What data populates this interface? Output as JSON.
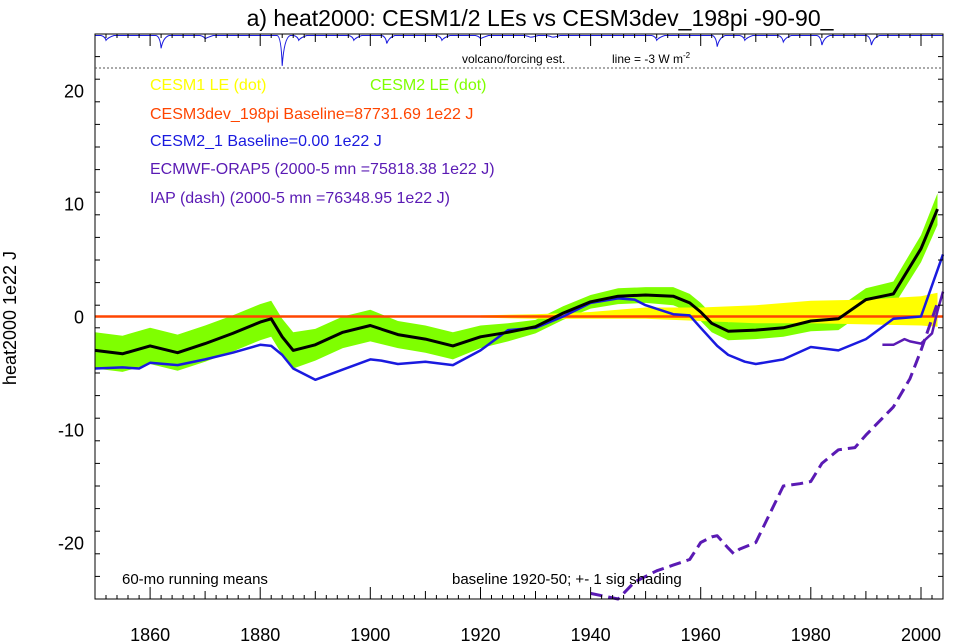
{
  "chart_data": {
    "type": "line",
    "title": "a) heat2000: CESM1/2 LEs vs CESM3dev_198pi -90-90_",
    "ylabel": "heat2000 1e22 J",
    "xlabel": "",
    "xlim": [
      1850,
      2004
    ],
    "ylim": [
      -25,
      25
    ],
    "x_ticks": [
      1860,
      1880,
      1900,
      1920,
      1940,
      1960,
      1980,
      2000
    ],
    "y_ticks": [
      -20,
      -10,
      0,
      10,
      20
    ],
    "grid": false,
    "legend": {
      "cesm1": "CESM1 LE (dot)",
      "cesm2": "CESM2 LE (dot)",
      "cesm3": "CESM3dev_198pi Baseline=87731.69 1e22 J",
      "cesm2_1": "CESM2_1 Baseline=0.00 1e22 J",
      "orap5": "ECMWF-ORAP5 (2000-5 mn =75818.38 1e22 J)",
      "iap": "IAP (dash) (2000-5 mn =76348.95 1e22 J)"
    },
    "annotations": {
      "volcano": "volcano/forcing est.",
      "line_prefix": "line = -3 W m",
      "line_sup": "-2",
      "running": "60-mo running means",
      "baseline": "baseline 1920-50; +- 1 sig shading"
    },
    "colors": {
      "cesm1": "#ffff00",
      "cesm2": "#7fff00",
      "cesm3": "#ff4500",
      "cesm2_1": "#1a1adf",
      "orap5": "#5a1ab4",
      "iap": "#5a1ab4",
      "ensemble_mean": "#000000",
      "volcano": "#1a1adf"
    },
    "series": [
      {
        "name": "CESM2 LE (dot)",
        "x": [
          1850,
          1855,
          1860,
          1865,
          1870,
          1875,
          1880,
          1882,
          1884,
          1886,
          1890,
          1895,
          1900,
          1905,
          1910,
          1915,
          1920,
          1925,
          1930,
          1935,
          1940,
          1945,
          1950,
          1955,
          1958,
          1960,
          1962,
          1965,
          1970,
          1975,
          1980,
          1985,
          1990,
          1995,
          2000,
          2003
        ],
        "values": [
          -3.0,
          -3.3,
          -2.6,
          -3.2,
          -2.4,
          -1.5,
          -0.5,
          -0.2,
          -1.8,
          -3.0,
          -2.5,
          -1.4,
          -0.8,
          -1.6,
          -2.0,
          -2.6,
          -1.8,
          -1.4,
          -0.9,
          0.3,
          1.3,
          1.8,
          1.9,
          1.8,
          1.2,
          0.4,
          -0.6,
          -1.3,
          -1.2,
          -1.0,
          -0.4,
          -0.2,
          1.5,
          2.0,
          6.0,
          9.5
        ],
        "sigma": [
          1.6,
          1.6,
          1.6,
          1.6,
          1.6,
          1.6,
          1.6,
          1.6,
          1.6,
          1.6,
          1.4,
          1.4,
          1.4,
          1.2,
          1.2,
          1.2,
          1.0,
          0.8,
          0.6,
          0.6,
          0.6,
          0.7,
          0.7,
          0.8,
          0.8,
          0.8,
          0.8,
          0.8,
          0.8,
          0.8,
          0.9,
          1.0,
          1.0,
          1.1,
          1.2,
          1.4
        ]
      },
      {
        "name": "CESM1 LE (dot)",
        "x": [
          1920,
          1930,
          1940,
          1950,
          1960,
          1970,
          1980,
          1990,
          2000,
          2003
        ],
        "values": [
          0.0,
          0.0,
          0.1,
          0.3,
          0.2,
          0.2,
          0.4,
          0.4,
          0.5,
          0.6
        ],
        "sigma": [
          0.1,
          0.2,
          0.3,
          0.5,
          0.6,
          0.8,
          1.0,
          1.1,
          1.3,
          1.5
        ]
      },
      {
        "name": "CESM3dev_198pi Baseline=87731.69 1e22 J",
        "x": [
          1850,
          2004
        ],
        "values": [
          0.0,
          0.0
        ]
      },
      {
        "name": "CESM2_1 Baseline=0.00 1e22 J",
        "x": [
          1850,
          1855,
          1858,
          1860,
          1865,
          1870,
          1875,
          1880,
          1882,
          1884,
          1886,
          1890,
          1895,
          1900,
          1902,
          1905,
          1910,
          1915,
          1920,
          1925,
          1930,
          1935,
          1940,
          1945,
          1948,
          1950,
          1955,
          1958,
          1960,
          1963,
          1965,
          1968,
          1970,
          1975,
          1980,
          1985,
          1990,
          1995,
          2000,
          2004
        ],
        "values": [
          -4.6,
          -4.5,
          -4.6,
          -4.1,
          -4.3,
          -3.8,
          -3.2,
          -2.5,
          -2.6,
          -3.4,
          -4.6,
          -5.6,
          -4.7,
          -3.8,
          -3.9,
          -4.2,
          -4.0,
          -4.3,
          -3.0,
          -1.2,
          -1.0,
          0.0,
          1.2,
          1.6,
          1.5,
          1.0,
          0.2,
          0.1,
          -1.0,
          -2.6,
          -3.4,
          -4.0,
          -4.2,
          -3.8,
          -2.7,
          -3.0,
          -2.0,
          -0.2,
          0.0,
          5.5
        ]
      },
      {
        "name": "ECMWF-ORAP5 (2000-5 mn =75818.38 1e22 J)",
        "x": [
          1993,
          1995,
          1997,
          1998,
          2000,
          2002,
          2003,
          2004
        ],
        "values": [
          -2.5,
          -2.5,
          -2.0,
          -2.2,
          -2.4,
          -1.5,
          0.5,
          2.2
        ]
      },
      {
        "name": "IAP (dash) (2000-5 mn =76348.95 1e22 J)",
        "x": [
          1940,
          1945,
          1948,
          1950,
          1952,
          1955,
          1958,
          1960,
          1962,
          1963,
          1965,
          1966,
          1967,
          1970,
          1972,
          1975,
          1978,
          1980,
          1982,
          1985,
          1988,
          1990,
          1993,
          1995,
          1998,
          2000,
          2003
        ],
        "values": [
          -24.5,
          -25.0,
          -23.5,
          -23.0,
          -22.5,
          -22.0,
          -21.5,
          -20.0,
          -19.5,
          -19.4,
          -20.5,
          -21.0,
          -20.6,
          -20.0,
          -18.0,
          -15.0,
          -14.8,
          -14.6,
          -13.0,
          -11.8,
          -11.6,
          -10.5,
          -9.0,
          -8.0,
          -5.5,
          -3.0,
          1.2
        ]
      }
    ],
    "volcano_signal": {
      "x": [
        1852,
        1862,
        1870,
        1884,
        1887,
        1897,
        1903,
        1913,
        1920,
        1929,
        1933,
        1952,
        1963,
        1968,
        1975,
        1982,
        1991
      ],
      "dip": [
        0.3,
        0.8,
        0.2,
        1.9,
        0.3,
        0.3,
        0.5,
        0.3,
        0.2,
        0.1,
        0.1,
        0.3,
        0.7,
        0.3,
        0.4,
        0.6,
        0.6
      ]
    }
  }
}
